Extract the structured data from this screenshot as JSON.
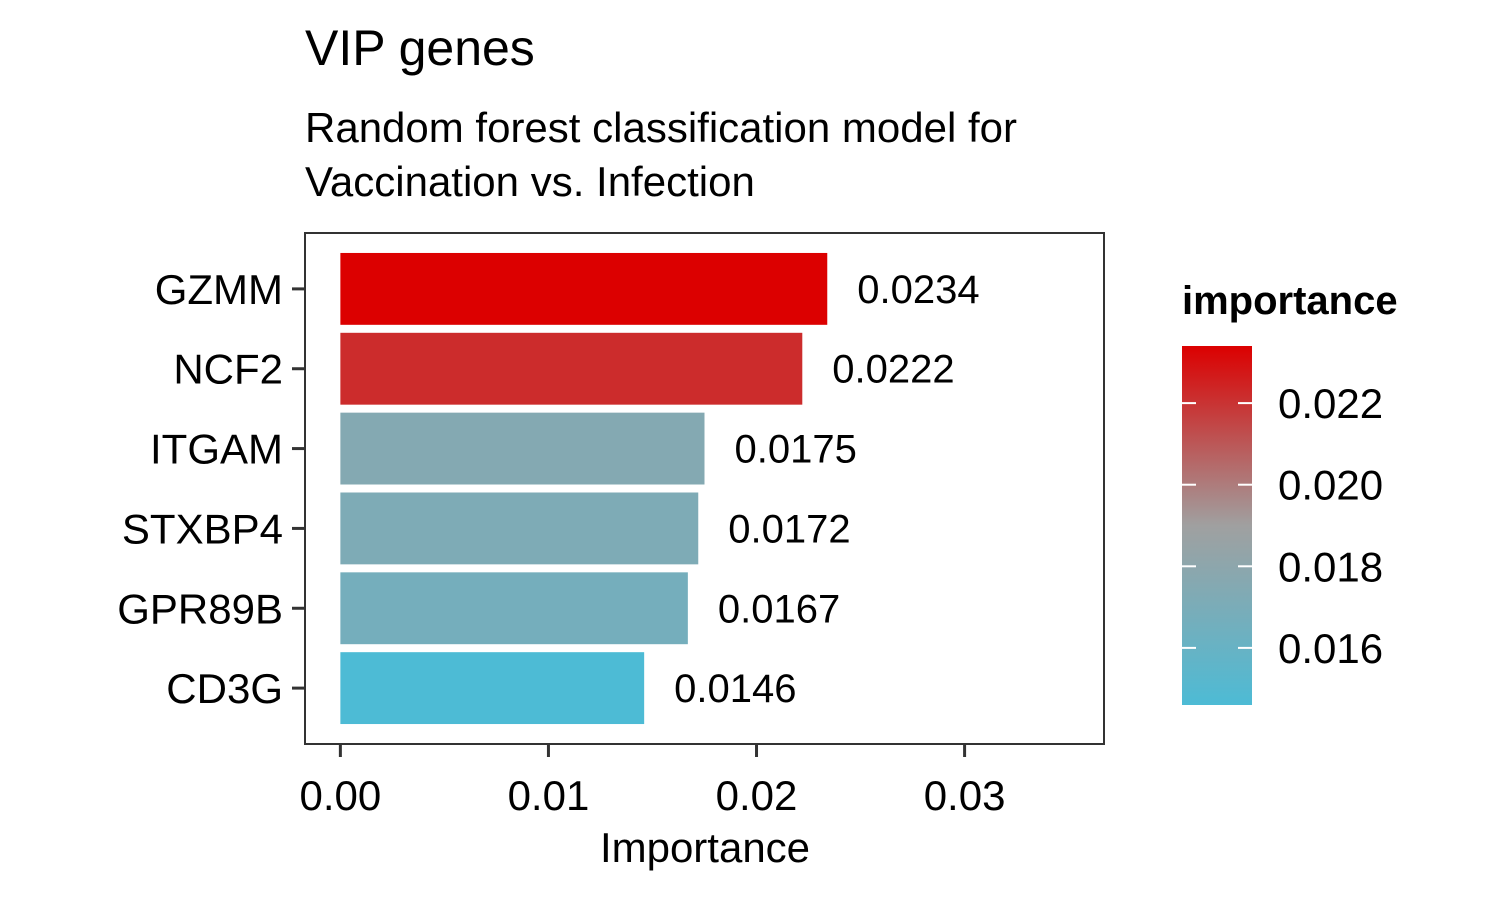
{
  "chart_data": {
    "type": "bar",
    "orientation": "horizontal",
    "title": "VIP genes",
    "subtitle_lines": [
      "Random forest classification model for",
      "Vaccination vs. Infection"
    ],
    "xlabel": "Importance",
    "ylabel": "",
    "categories": [
      "GZMM",
      "NCF2",
      "ITGAM",
      "STXBP4",
      "GPR89B",
      "CD3G"
    ],
    "values": [
      0.0234,
      0.0222,
      0.0175,
      0.0172,
      0.0167,
      0.0146
    ],
    "value_labels": [
      "0.0234",
      "0.0222",
      "0.0175",
      "0.0172",
      "0.0167",
      "0.0146"
    ],
    "xlim": [
      -0.0017,
      0.0367
    ],
    "xticks": [
      0.0,
      0.01,
      0.02,
      0.03
    ],
    "xtick_labels": [
      "0.00",
      "0.01",
      "0.02",
      "0.03"
    ],
    "grid": false,
    "legend": {
      "title": "importance",
      "placement": "right",
      "type": "colorbar",
      "range": [
        0.0146,
        0.0234
      ],
      "ticks": [
        0.016,
        0.018,
        0.02,
        0.022
      ],
      "tick_labels": [
        "0.016",
        "0.018",
        "0.020",
        "0.022"
      ],
      "colors": {
        "low": "#4dbbd5",
        "mid": "#a0a0a0",
        "high": "#dc0000"
      }
    }
  }
}
